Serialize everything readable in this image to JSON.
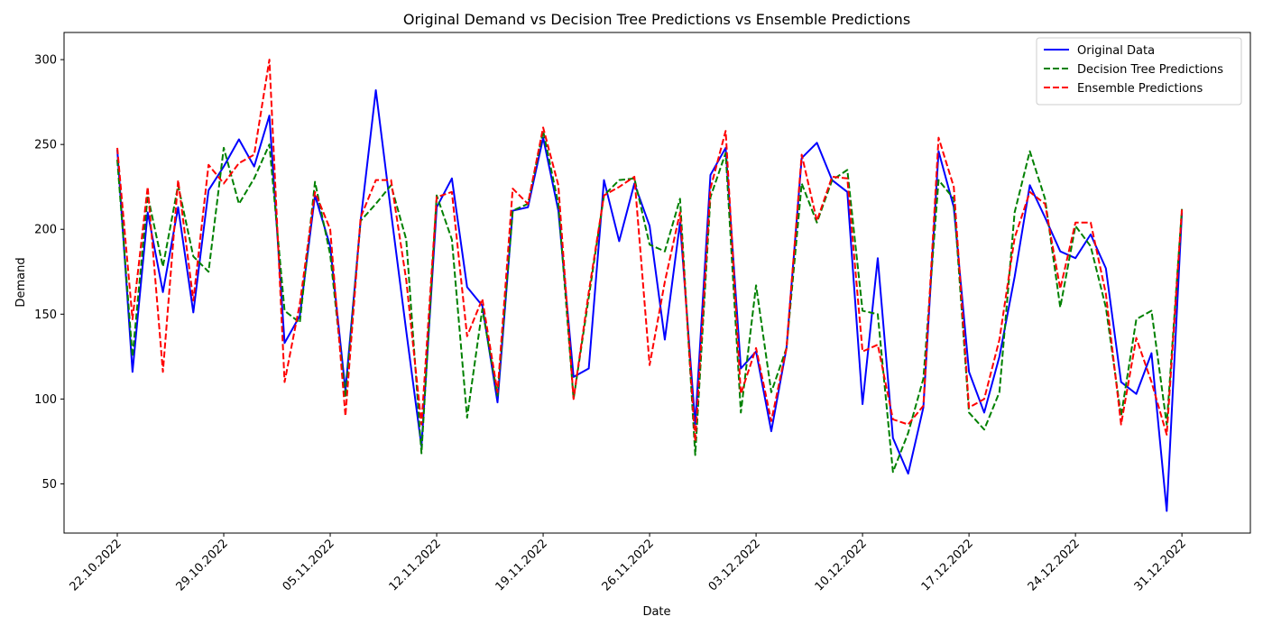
{
  "chart_data": {
    "type": "line",
    "title": "Original Demand vs Decision Tree Predictions vs Ensemble Predictions",
    "xlabel": "Date",
    "ylabel": "Demand",
    "x_start": "2022-10-22",
    "x_ticks": [
      "22.10.2022",
      "29.10.2022",
      "05.11.2022",
      "12.11.2022",
      "19.11.2022",
      "26.11.2022",
      "03.12.2022",
      "10.12.2022",
      "17.12.2022",
      "24.12.2022",
      "31.12.2022"
    ],
    "y_ticks": [
      50,
      100,
      150,
      200,
      250,
      300
    ],
    "ylim": [
      21,
      316
    ],
    "xlim": [
      -3.5,
      74.5
    ],
    "grid": false,
    "legend_position": "top-right",
    "series": [
      {
        "name": "Original Data",
        "color": "#0000ff",
        "style": "solid",
        "values": [
          247,
          116,
          210,
          163,
          213,
          151,
          223,
          237,
          253,
          237,
          267,
          133,
          149,
          220,
          190,
          105,
          205,
          282,
          210,
          140,
          72,
          213,
          230,
          166,
          155,
          98,
          211,
          213,
          254,
          211,
          113,
          118,
          229,
          193,
          227,
          202,
          135,
          204,
          85,
          232,
          248,
          118,
          128,
          81,
          130,
          242,
          251,
          229,
          222,
          97,
          183,
          77,
          56,
          95,
          246,
          213,
          116,
          92,
          125,
          172,
          226,
          207,
          187,
          183,
          197,
          177,
          110,
          103,
          127,
          34,
          210
        ]
      },
      {
        "name": "Decision Tree Predictions",
        "color": "#008000",
        "style": "dashed",
        "values": [
          241,
          125,
          220,
          178,
          226,
          184,
          175,
          248,
          215,
          230,
          250,
          152,
          145,
          228,
          185,
          101,
          205,
          215,
          226,
          194,
          68,
          220,
          194,
          89,
          153,
          102,
          211,
          215,
          258,
          215,
          100,
          160,
          220,
          229,
          230,
          191,
          187,
          218,
          67,
          219,
          245,
          92,
          167,
          104,
          130,
          227,
          204,
          229,
          235,
          152,
          150,
          57,
          80,
          112,
          229,
          218,
          92,
          82,
          104,
          210,
          246,
          218,
          154,
          202,
          190,
          154,
          90,
          147,
          152,
          85,
          212
        ]
      },
      {
        "name": "Ensemble Predictions",
        "color": "#ff0000",
        "style": "dashed",
        "values": [
          248,
          147,
          225,
          116,
          229,
          158,
          238,
          227,
          239,
          244,
          300,
          110,
          156,
          222,
          200,
          90,
          207,
          229,
          229,
          170,
          85,
          219,
          222,
          137,
          159,
          104,
          224,
          215,
          260,
          226,
          100,
          163,
          220,
          225,
          231,
          120,
          169,
          210,
          75,
          224,
          258,
          103,
          130,
          87,
          130,
          244,
          205,
          231,
          230,
          128,
          132,
          88,
          85,
          96,
          254,
          225,
          95,
          100,
          135,
          195,
          222,
          215,
          165,
          204,
          204,
          162,
          85,
          136,
          110,
          79,
          212
        ]
      }
    ]
  }
}
